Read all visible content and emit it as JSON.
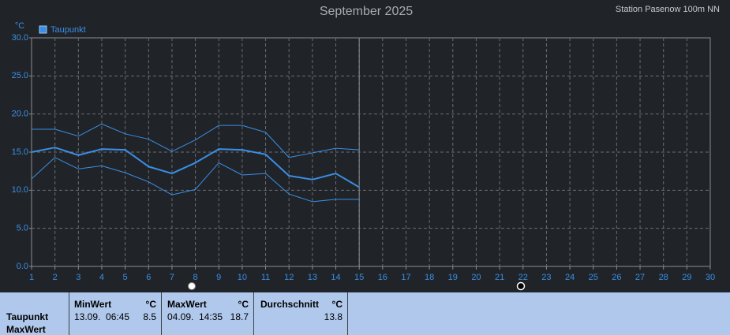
{
  "chart_data": {
    "type": "line",
    "title": "September 2025",
    "subtitle": "Station Pasenow 100m NN",
    "y_label": "°C",
    "x": [
      1,
      2,
      3,
      4,
      5,
      6,
      7,
      8,
      9,
      10,
      11,
      12,
      13,
      14,
      15
    ],
    "series": [
      {
        "name": "Taupunkt",
        "color": "#3a8ee6",
        "width": 2,
        "values": [
          15.0,
          15.6,
          14.6,
          15.4,
          15.3,
          13.1,
          12.2,
          13.6,
          15.4,
          15.3,
          14.7,
          11.9,
          11.4,
          12.2,
          10.4
        ]
      },
      {
        "color": "#3a8ee6",
        "width": 1,
        "values": [
          18.0,
          18.0,
          17.1,
          18.7,
          17.4,
          16.7,
          15.1,
          16.6,
          18.5,
          18.5,
          17.6,
          14.3,
          14.9,
          15.5,
          15.3
        ]
      },
      {
        "color": "#3a8ee6",
        "width": 1,
        "values": [
          11.5,
          14.3,
          12.8,
          13.2,
          12.3,
          11.1,
          9.4,
          10.1,
          13.6,
          12.0,
          12.2,
          9.5,
          8.5,
          8.8,
          8.8
        ]
      }
    ],
    "xlim": [
      1,
      30
    ],
    "xticks": [
      1,
      2,
      3,
      4,
      5,
      6,
      7,
      8,
      9,
      10,
      11,
      12,
      13,
      14,
      15,
      16,
      17,
      18,
      19,
      20,
      21,
      22,
      23,
      24,
      25,
      26,
      27,
      28,
      29,
      30
    ],
    "ylim": [
      0,
      30
    ],
    "yticks": [
      {
        "value": 0,
        "label": "0.0"
      },
      {
        "value": 5,
        "label": "5.0"
      },
      {
        "value": 10,
        "label": "10.0"
      },
      {
        "value": 15,
        "label": "15.0"
      },
      {
        "value": 20,
        "label": "20.0"
      },
      {
        "value": 25,
        "label": "25.0"
      },
      {
        "value": 30,
        "label": "30.0"
      }
    ],
    "grid": true
  },
  "table": {
    "row_label": "Taupunkt",
    "row_sublabel": "MaxWert",
    "columns": [
      {
        "header": "MinWert",
        "unit": "°C",
        "time": "13.09.  06:45",
        "value": "8.5"
      },
      {
        "header": "MaxWert",
        "unit": "°C",
        "time": "04.09.  14:35",
        "value": "18.7"
      },
      {
        "header": "Durchschnitt",
        "unit": "°C",
        "value": "13.8"
      }
    ]
  }
}
